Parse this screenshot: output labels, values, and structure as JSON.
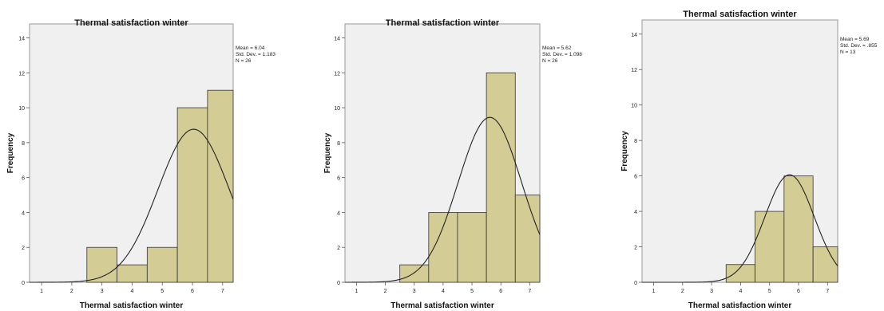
{
  "chart_data": [
    {
      "type": "bar",
      "title": "Thermal satisfaction winter",
      "xlabel": "Thermal satisfaction winter",
      "ylabel": "Frequency",
      "x_ticks": [
        "1",
        "2",
        "3",
        "4",
        "5",
        "6",
        "7"
      ],
      "y_ticks": [
        "0",
        "2",
        "4",
        "6",
        "8",
        "10",
        "12",
        "14"
      ],
      "xlim": [
        0.6,
        7.35
      ],
      "ylim": [
        0,
        14.8
      ],
      "categories": [
        "3",
        "4",
        "5",
        "6",
        "7"
      ],
      "bins": [
        [
          2.5,
          3.5
        ],
        [
          3.5,
          4.5
        ],
        [
          4.5,
          5.5
        ],
        [
          5.5,
          6.5
        ],
        [
          6.5,
          7.35
        ]
      ],
      "values": [
        2,
        1,
        2,
        10,
        11
      ],
      "normal_curve": {
        "mean": 6.04,
        "sd": 1.183,
        "n": 26
      },
      "stats": [
        "Mean = 6.04",
        "Std. Dev. = 1.183",
        "N = 26"
      ],
      "grid": false,
      "colors": {
        "bar": "#d4cc95",
        "plot_bg": "#f0f0f0",
        "curve": "#222222"
      }
    },
    {
      "type": "bar",
      "title": "Thermal satisfaction winter",
      "xlabel": "Thermal satisfaction winter",
      "ylabel": "Frequency",
      "x_ticks": [
        "1",
        "2",
        "3",
        "4",
        "5",
        "6",
        "7"
      ],
      "y_ticks": [
        "0",
        "2",
        "4",
        "6",
        "8",
        "10",
        "12",
        "14"
      ],
      "xlim": [
        0.6,
        7.35
      ],
      "ylim": [
        0,
        14.8
      ],
      "categories": [
        "3",
        "4",
        "5",
        "6",
        "7"
      ],
      "bins": [
        [
          2.5,
          3.5
        ],
        [
          3.5,
          4.5
        ],
        [
          4.5,
          5.5
        ],
        [
          5.5,
          6.5
        ],
        [
          6.5,
          7.35
        ]
      ],
      "values": [
        1,
        4,
        4,
        12,
        5
      ],
      "normal_curve": {
        "mean": 5.62,
        "sd": 1.098,
        "n": 26
      },
      "stats": [
        "Mean = 5.62",
        "Std. Dev. = 1.098",
        "N = 26"
      ],
      "grid": false,
      "colors": {
        "bar": "#d4cc95",
        "plot_bg": "#f0f0f0",
        "curve": "#222222"
      }
    },
    {
      "type": "bar",
      "title": "Thermal satisfaction winter",
      "xlabel": "Thermal satisfaction winter",
      "ylabel": "Frequency",
      "x_ticks": [
        "1",
        "2",
        "3",
        "4",
        "5",
        "6",
        "7"
      ],
      "y_ticks": [
        "0",
        "2",
        "4",
        "6",
        "8",
        "10",
        "12",
        "14"
      ],
      "xlim": [
        0.6,
        7.35
      ],
      "ylim": [
        0,
        14.8
      ],
      "categories": [
        "4",
        "5",
        "6",
        "7"
      ],
      "bins": [
        [
          3.5,
          4.5
        ],
        [
          4.5,
          5.5
        ],
        [
          5.5,
          6.5
        ],
        [
          6.5,
          7.35
        ]
      ],
      "values": [
        1,
        4,
        6,
        2
      ],
      "normal_curve": {
        "mean": 5.69,
        "sd": 0.855,
        "n": 13
      },
      "stats": [
        "Mean = 5.69",
        "Std. Dev. = .855",
        "N = 13"
      ],
      "grid": false,
      "colors": {
        "bar": "#d4cc95",
        "plot_bg": "#f0f0f0",
        "curve": "#222222"
      }
    }
  ]
}
